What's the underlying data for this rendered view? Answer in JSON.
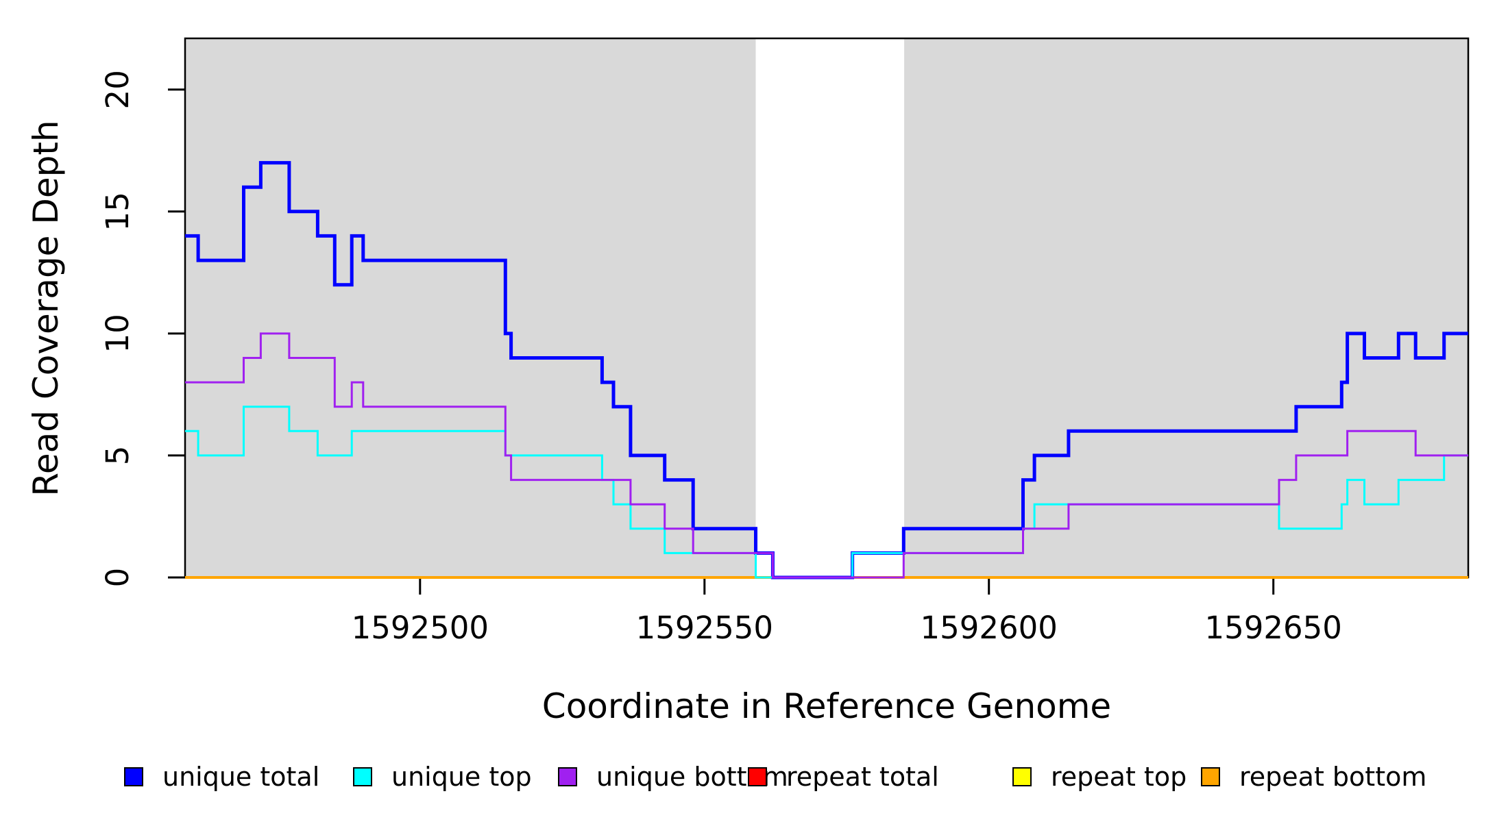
{
  "chart_data": {
    "type": "line",
    "subtype": "step-coverage-plot",
    "title": "",
    "xlabel": "Coordinate in Reference Genome",
    "ylabel": "Read Coverage Depth",
    "xlim": [
      1592458.7,
      1592684.25
    ],
    "ylim": [
      0,
      22.1
    ],
    "x_ticks": [
      1592500,
      1592550,
      1592600,
      1592650
    ],
    "x_tick_labels": [
      "1592500",
      "1592550",
      "1592600",
      "1592650"
    ],
    "y_ticks": [
      0,
      5,
      10,
      15,
      20
    ],
    "y_tick_labels": [
      "0",
      "5",
      "10",
      "15",
      "20"
    ],
    "grid": "off",
    "legend_position": "bottom",
    "background_shading": {
      "color": "#D9D9D9",
      "regions": [
        [
          1592458.7,
          1592559.0
        ],
        [
          1592585.1,
          1592684.25
        ]
      ]
    },
    "series": [
      {
        "name": "unique total",
        "color": "#0000FF",
        "steps": [
          [
            1592458.7,
            14
          ],
          [
            1592461,
            13
          ],
          [
            1592469,
            16
          ],
          [
            1592472,
            17
          ],
          [
            1592477,
            15
          ],
          [
            1592482,
            14
          ],
          [
            1592485,
            12
          ],
          [
            1592488,
            14
          ],
          [
            1592490,
            13
          ],
          [
            1592515,
            10
          ],
          [
            1592516,
            9
          ],
          [
            1592532,
            8
          ],
          [
            1592534,
            7
          ],
          [
            1592537,
            5
          ],
          [
            1592543,
            4
          ],
          [
            1592548,
            2
          ],
          [
            1592559,
            1
          ],
          [
            1592562,
            0
          ],
          [
            1592576,
            1
          ],
          [
            1592585,
            2
          ],
          [
            1592606,
            4
          ],
          [
            1592608,
            5
          ],
          [
            1592614,
            6
          ],
          [
            1592654,
            7
          ],
          [
            1592662,
            8
          ],
          [
            1592663,
            10
          ],
          [
            1592666,
            9
          ],
          [
            1592672,
            10
          ],
          [
            1592675,
            9
          ],
          [
            1592680,
            10
          ]
        ]
      },
      {
        "name": "unique top",
        "color": "#00FFFF",
        "steps": [
          [
            1592458.7,
            6
          ],
          [
            1592461,
            5
          ],
          [
            1592469,
            7
          ],
          [
            1592477,
            6
          ],
          [
            1592482,
            5
          ],
          [
            1592488,
            6
          ],
          [
            1592515,
            5
          ],
          [
            1592532,
            4
          ],
          [
            1592534,
            3
          ],
          [
            1592537,
            2
          ],
          [
            1592543,
            1
          ],
          [
            1592559,
            0
          ],
          [
            1592576,
            1
          ],
          [
            1592606,
            2
          ],
          [
            1592608,
            3
          ],
          [
            1592651,
            2
          ],
          [
            1592662,
            3
          ],
          [
            1592663,
            4
          ],
          [
            1592666,
            3
          ],
          [
            1592672,
            4
          ],
          [
            1592680,
            5
          ]
        ]
      },
      {
        "name": "unique bottom",
        "color": "#A020F0",
        "steps": [
          [
            1592458.7,
            8
          ],
          [
            1592469,
            9
          ],
          [
            1592472,
            10
          ],
          [
            1592477,
            9
          ],
          [
            1592485,
            7
          ],
          [
            1592488,
            8
          ],
          [
            1592490,
            7
          ],
          [
            1592515,
            5
          ],
          [
            1592516,
            4
          ],
          [
            1592537,
            3
          ],
          [
            1592543,
            2
          ],
          [
            1592548,
            1
          ],
          [
            1592562,
            0
          ],
          [
            1592585,
            1
          ],
          [
            1592606,
            2
          ],
          [
            1592614,
            3
          ],
          [
            1592651,
            4
          ],
          [
            1592654,
            5
          ],
          [
            1592663,
            6
          ],
          [
            1592675,
            5
          ]
        ]
      },
      {
        "name": "repeat total",
        "color": "#FF0000",
        "steps": [
          [
            1592458.7,
            0
          ]
        ]
      },
      {
        "name": "repeat top",
        "color": "#FFFF00",
        "steps": [
          [
            1592458.7,
            0
          ]
        ]
      },
      {
        "name": "repeat bottom",
        "color": "#FFA500",
        "steps": [
          [
            1592458.7,
            0
          ]
        ]
      }
    ]
  }
}
